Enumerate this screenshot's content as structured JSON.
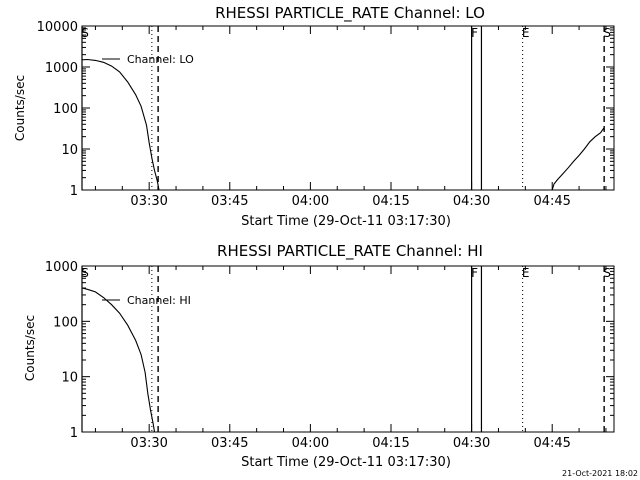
{
  "footer_timestamp": "21-Oct-2021 18:02",
  "chart_data": [
    {
      "type": "line",
      "title": "RHESSI PARTICLE_RATE Channel: LO",
      "xlabel": "Start Time (29-Oct-11 03:17:30)",
      "ylabel": "Counts/sec",
      "y_scale": "log",
      "ylim": [
        1,
        10000
      ],
      "xlim": [
        "03:17:30",
        "04:56:30"
      ],
      "x_ticks": [
        "03:30",
        "03:45",
        "04:00",
        "04:15",
        "04:30",
        "04:45"
      ],
      "y_ticks": [
        "1",
        "10",
        "100",
        "1000",
        "10000"
      ],
      "series": [
        {
          "name": "Channel: LO",
          "points": [
            [
              "03:17:30",
              1500
            ],
            [
              "03:18:30",
              1520
            ],
            [
              "03:20:00",
              1450
            ],
            [
              "03:21:30",
              1300
            ],
            [
              "03:23:00",
              1050
            ],
            [
              "03:24:30",
              760
            ],
            [
              "03:26:00",
              430
            ],
            [
              "03:27:30",
              210
            ],
            [
              "03:28:30",
              110
            ],
            [
              "03:29:30",
              38
            ],
            [
              "03:30:00",
              14
            ],
            [
              "03:30:30",
              6
            ],
            [
              "03:31:00",
              3
            ],
            [
              "03:31:30",
              1.7
            ],
            [
              "03:31:50",
              1
            ]
          ]
        },
        {
          "name": "",
          "points": [
            [
              "04:45:00",
              1
            ],
            [
              "04:45:20",
              1.4
            ],
            [
              "04:46:00",
              1.8
            ],
            [
              "04:47:00",
              2.5
            ],
            [
              "04:48:00",
              3.5
            ],
            [
              "04:49:00",
              5
            ],
            [
              "04:50:00",
              7
            ],
            [
              "04:51:00",
              10
            ],
            [
              "04:52:00",
              15
            ],
            [
              "04:53:00",
              20
            ],
            [
              "04:54:00",
              25
            ],
            [
              "04:54:40",
              33
            ]
          ]
        }
      ],
      "markers": [
        {
          "label": "S",
          "time": "03:17:30",
          "style": "solid"
        },
        {
          "label": "",
          "time": "03:30:30",
          "style": "dotted"
        },
        {
          "label": "",
          "time": "03:31:40",
          "style": "dashed"
        },
        {
          "label": "F",
          "time": "04:30:00",
          "style": "solid"
        },
        {
          "label": "",
          "time": "04:31:50",
          "style": "solid"
        },
        {
          "label": "E",
          "time": "04:39:30",
          "style": "dotted"
        },
        {
          "label": "S",
          "time": "04:54:40",
          "style": "dashed"
        }
      ]
    },
    {
      "type": "line",
      "title": "RHESSI PARTICLE_RATE Channel: HI",
      "xlabel": "Start Time (29-Oct-11 03:17:30)",
      "ylabel": "Counts/sec",
      "y_scale": "log",
      "ylim": [
        1,
        1000
      ],
      "xlim": [
        "03:17:30",
        "04:56:30"
      ],
      "x_ticks": [
        "03:30",
        "03:45",
        "04:00",
        "04:15",
        "04:30",
        "04:45"
      ],
      "y_ticks": [
        "1",
        "10",
        "100",
        "1000"
      ],
      "series": [
        {
          "name": "Channel: HI",
          "points": [
            [
              "03:17:30",
              400
            ],
            [
              "03:18:30",
              380
            ],
            [
              "03:20:00",
              340
            ],
            [
              "03:21:30",
              270
            ],
            [
              "03:23:00",
              200
            ],
            [
              "03:24:30",
              140
            ],
            [
              "03:26:00",
              85
            ],
            [
              "03:27:30",
              45
            ],
            [
              "03:28:30",
              25
            ],
            [
              "03:29:15",
              12
            ],
            [
              "03:29:45",
              5
            ],
            [
              "03:30:15",
              2.5
            ],
            [
              "03:30:45",
              1.4
            ],
            [
              "03:31:00",
              1
            ]
          ]
        }
      ],
      "markers": [
        {
          "label": "S",
          "time": "03:17:30",
          "style": "solid"
        },
        {
          "label": "",
          "time": "03:30:30",
          "style": "dotted"
        },
        {
          "label": "",
          "time": "03:31:40",
          "style": "dashed"
        },
        {
          "label": "F",
          "time": "04:30:00",
          "style": "solid"
        },
        {
          "label": "",
          "time": "04:31:50",
          "style": "solid"
        },
        {
          "label": "E",
          "time": "04:39:30",
          "style": "dotted"
        },
        {
          "label": "S",
          "time": "04:54:40",
          "style": "dashed"
        }
      ]
    }
  ]
}
